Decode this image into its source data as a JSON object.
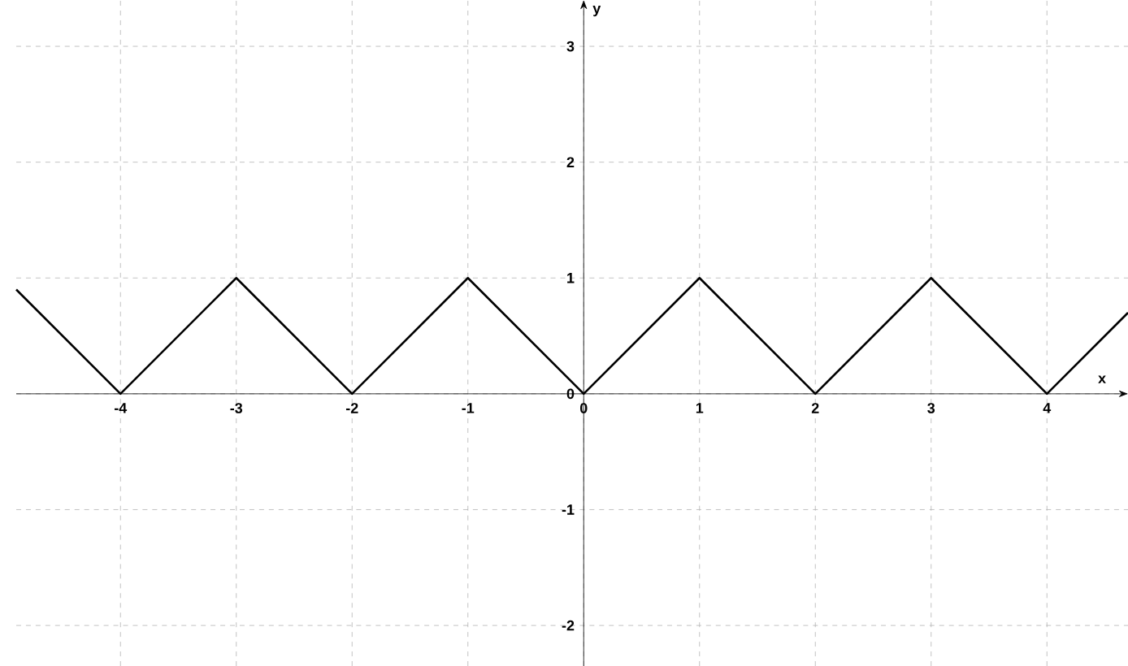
{
  "chart_data": {
    "type": "line",
    "xlabel": "x",
    "ylabel": "y",
    "xlim": [
      -4.9,
      4.7
    ],
    "ylim": [
      -2.35,
      3.4
    ],
    "xticks": [
      -4,
      -3,
      -2,
      -1,
      0,
      1,
      2,
      3,
      4
    ],
    "yticks": [
      -2,
      -1,
      0,
      1,
      2,
      3
    ],
    "grid": true,
    "marker": "none",
    "line_style": "solid",
    "series": [
      {
        "color": "#000000",
        "x": [
          -4.9,
          -4,
          -3,
          -2,
          -1,
          0,
          1,
          2,
          3,
          4,
          4.7
        ],
        "values": [
          0.9,
          0,
          1,
          0,
          1,
          0,
          1,
          0,
          1,
          0,
          0.7
        ]
      }
    ]
  }
}
